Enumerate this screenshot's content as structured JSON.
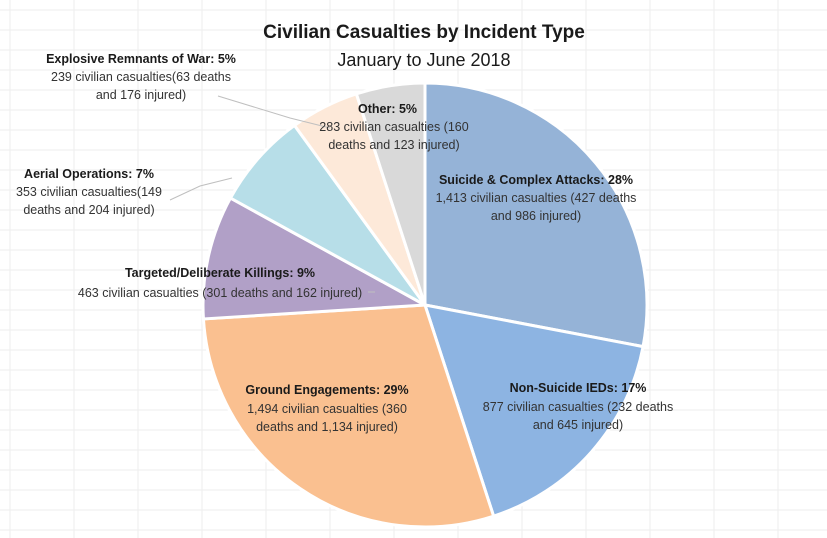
{
  "chart_data": {
    "type": "pie",
    "title": "Civilian Casualties by Incident Type",
    "subtitle": "January to June 2018",
    "slices": [
      {
        "label": "Suicide & Complex Attacks: 28%",
        "percent": 28,
        "value": 1413,
        "details": [
          "1,413 civilian casualties (427 deaths",
          "and 986 injured)"
        ],
        "color": "#95b3d7"
      },
      {
        "label": "Non-Suicide IEDs: 17%",
        "percent": 17,
        "value": 877,
        "details": [
          "877 civilian casualties (232 deaths",
          "and 645 injured)"
        ],
        "color": "#8db4e2"
      },
      {
        "label": "Ground Engagements: 29%",
        "percent": 29,
        "value": 1494,
        "details": [
          "1,494 civilian casualties (360",
          "deaths and 1,134 injured)"
        ],
        "color": "#fac090"
      },
      {
        "label": "Targeted/Deliberate Killings: 9%",
        "percent": 9,
        "value": 463,
        "details": [
          "463 civilian casualties (301 deaths and 162 injured)"
        ],
        "color": "#b1a0c7"
      },
      {
        "label": "Aerial Operations: 7%",
        "percent": 7,
        "value": 353,
        "details": [
          "353 civilian casualties(149",
          "deaths and 204 injured)"
        ],
        "color": "#b7dee8"
      },
      {
        "label": "Explosive Remnants of War: 5%",
        "percent": 5,
        "value": 239,
        "details": [
          "239 civilian casualties(63 deaths",
          "and 176 injured)"
        ],
        "color": "#fde9d9"
      },
      {
        "label": "Other: 5%",
        "percent": 5,
        "value": 283,
        "details": [
          "283 civilian casualties (160",
          "deaths and 123 injured)"
        ],
        "color": "#d9d9d9"
      }
    ]
  }
}
